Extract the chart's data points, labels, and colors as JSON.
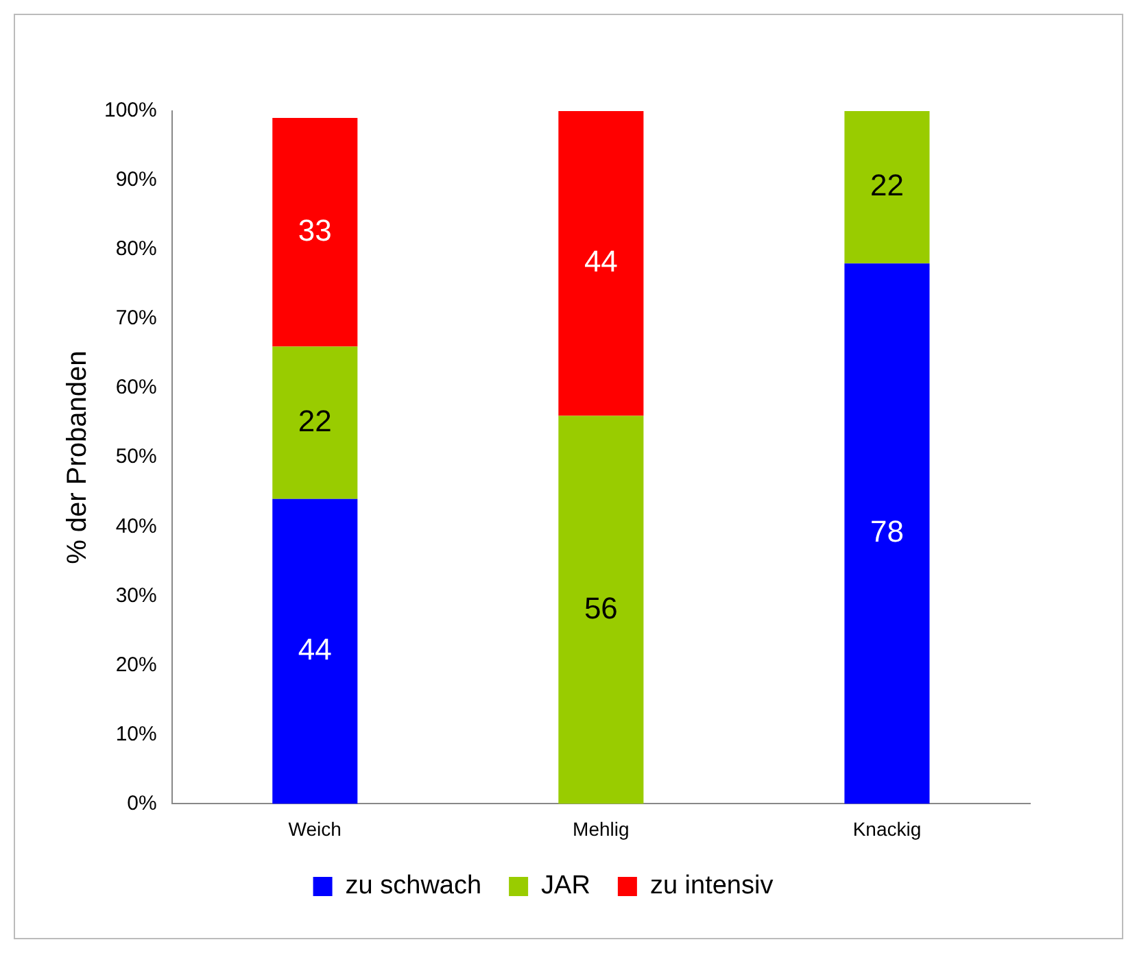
{
  "chart_data": {
    "type": "bar",
    "stacked": true,
    "ylabel": "% der Probanden",
    "categories": [
      "Weich",
      "Mehlig",
      "Knackig"
    ],
    "series": [
      {
        "name": "zu schwach",
        "color": "#0000ff",
        "values": [
          44,
          0,
          78
        ],
        "value_labels": [
          "44",
          null,
          "78"
        ]
      },
      {
        "name": "JAR",
        "color": "#99cc00",
        "values": [
          22,
          56,
          22
        ],
        "value_labels": [
          "22",
          "56",
          "22"
        ]
      },
      {
        "name": "zu intensiv",
        "color": "#ff0000",
        "values": [
          33,
          44,
          0
        ],
        "value_labels": [
          "33",
          "44",
          null
        ]
      }
    ],
    "ylim": [
      0,
      100
    ],
    "yticks": [
      {
        "value": 0,
        "label": "0%"
      },
      {
        "value": 10,
        "label": "10%"
      },
      {
        "value": 20,
        "label": "20%"
      },
      {
        "value": 30,
        "label": "30%"
      },
      {
        "value": 40,
        "label": "40%"
      },
      {
        "value": 50,
        "label": "50%"
      },
      {
        "value": 60,
        "label": "60%"
      },
      {
        "value": 70,
        "label": "70%"
      },
      {
        "value": 80,
        "label": "80%"
      },
      {
        "value": 90,
        "label": "90%"
      },
      {
        "value": 100,
        "label": "100%"
      }
    ],
    "grid": false,
    "legend": "bottom"
  }
}
